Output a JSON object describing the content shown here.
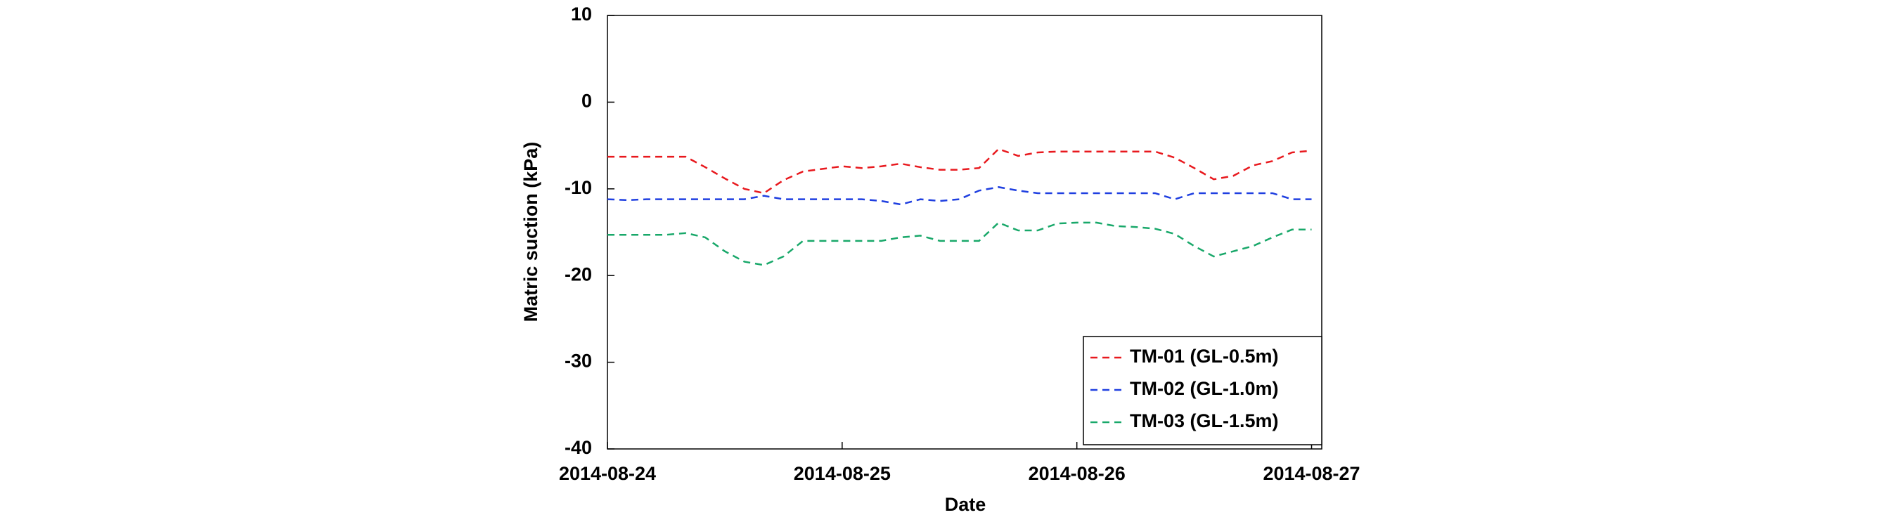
{
  "chart_data": {
    "type": "line",
    "x_label": "Date",
    "y_label": "Matric suction (kPa)",
    "categories": [
      "2014-08-24",
      null,
      null,
      null,
      null,
      null,
      null,
      null,
      null,
      null,
      null,
      null,
      "2014-08-25",
      null,
      null,
      null,
      null,
      null,
      null,
      null,
      null,
      null,
      null,
      null,
      "2014-08-26",
      null,
      null,
      null,
      null,
      null,
      null,
      null,
      null,
      null,
      null,
      null,
      "2014-08-27"
    ],
    "series": [
      {
        "name": "TM-01 (GL-0.5m)",
        "color": "#e8191e",
        "values": [
          -6.3,
          -6.3,
          -6.3,
          -6.3,
          -6.3,
          -7.5,
          -8.8,
          -10.0,
          -10.5,
          -9.0,
          -8.0,
          -7.7,
          -7.4,
          -7.6,
          -7.4,
          -7.1,
          -7.5,
          -7.8,
          -7.8,
          -7.6,
          -5.4,
          -6.2,
          -5.8,
          -5.7,
          -5.7,
          -5.7,
          -5.7,
          -5.7,
          -5.7,
          -6.4,
          -7.6,
          -8.9,
          -8.5,
          -7.3,
          -6.8,
          -5.8,
          -5.6
        ]
      },
      {
        "name": "TM-02 (GL-1.0m)",
        "color": "#1f3fe0",
        "values": [
          -11.2,
          -11.3,
          -11.2,
          -11.2,
          -11.2,
          -11.2,
          -11.2,
          -11.2,
          -10.8,
          -11.2,
          -11.2,
          -11.2,
          -11.2,
          -11.2,
          -11.4,
          -11.8,
          -11.2,
          -11.4,
          -11.2,
          -10.2,
          -9.8,
          -10.2,
          -10.5,
          -10.5,
          -10.5,
          -10.5,
          -10.5,
          -10.5,
          -10.5,
          -11.2,
          -10.5,
          -10.5,
          -10.5,
          -10.5,
          -10.5,
          -11.2,
          -11.2
        ]
      },
      {
        "name": "TM-03 (GL-1.5m)",
        "color": "#19a86a",
        "values": [
          -15.3,
          -15.3,
          -15.3,
          -15.3,
          -15.1,
          -15.6,
          -17.2,
          -18.4,
          -18.8,
          -17.8,
          -16.0,
          -16.0,
          -16.0,
          -16.0,
          -16.0,
          -15.6,
          -15.4,
          -16.0,
          -16.0,
          -16.0,
          -13.9,
          -14.8,
          -14.8,
          -14.0,
          -13.9,
          -13.9,
          -14.3,
          -14.4,
          -14.6,
          -15.2,
          -16.6,
          -17.8,
          -17.2,
          -16.6,
          -15.6,
          -14.7,
          -14.7
        ]
      }
    ],
    "ylim": [
      -40,
      10
    ],
    "yticks": [
      -40,
      -30,
      -20,
      -10,
      0,
      10
    ],
    "legend": "lower right",
    "grid": false
  }
}
